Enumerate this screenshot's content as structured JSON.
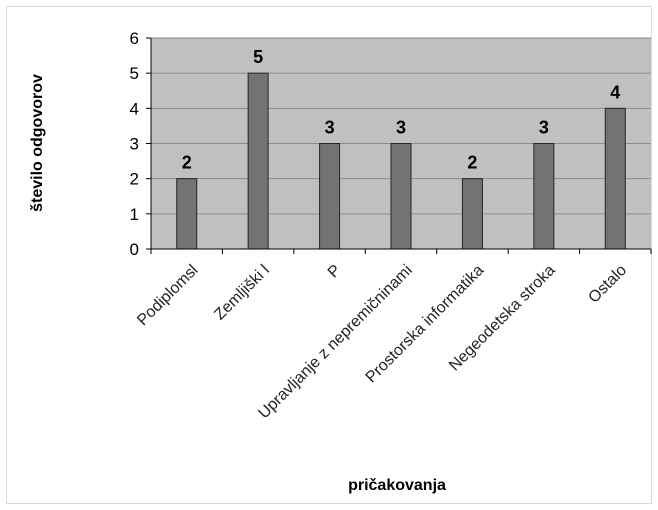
{
  "chart_data": {
    "type": "bar",
    "title": "",
    "xlabel": "pričakovanja",
    "ylabel": "število odgovorov",
    "categories": [
      "Podiplomsl",
      "Zemljiški l",
      "P",
      "Upravljanje z nepremičninami",
      "Prostorska informatika",
      "Negeodetska stroka",
      "Ostalo"
    ],
    "values": [
      2,
      5,
      3,
      3,
      2,
      3,
      4
    ],
    "ylim": [
      0,
      6
    ],
    "yticks": [
      "0",
      "1",
      "2",
      "3",
      "4",
      "5",
      "6"
    ],
    "grid": true,
    "legend": "none",
    "colors": {
      "plot_bg": "#c0c0c0",
      "bar_fill": "#737373",
      "bar_stroke": "#262626",
      "grid": "#8c8c8c"
    }
  }
}
